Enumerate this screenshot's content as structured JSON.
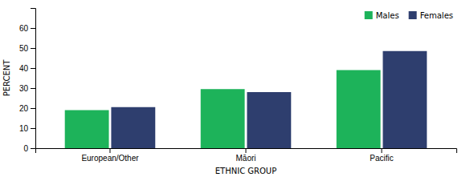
{
  "chart_data": {
    "type": "bar",
    "categories": [
      "European/Other",
      "Māori",
      "Pacific"
    ],
    "series": [
      {
        "name": "Males",
        "color": "#1db35a",
        "values": [
          19,
          29.5,
          39
        ]
      },
      {
        "name": "Females",
        "color": "#2e3e6e",
        "values": [
          20.5,
          28,
          48.5
        ]
      }
    ],
    "xlabel": "ETHNIC GROUP",
    "ylabel": "PERCENT",
    "ylim": [
      0,
      70
    ],
    "yticks": [
      0,
      10,
      20,
      30,
      40,
      50,
      60
    ],
    "grid": false,
    "legend": "upper right"
  }
}
